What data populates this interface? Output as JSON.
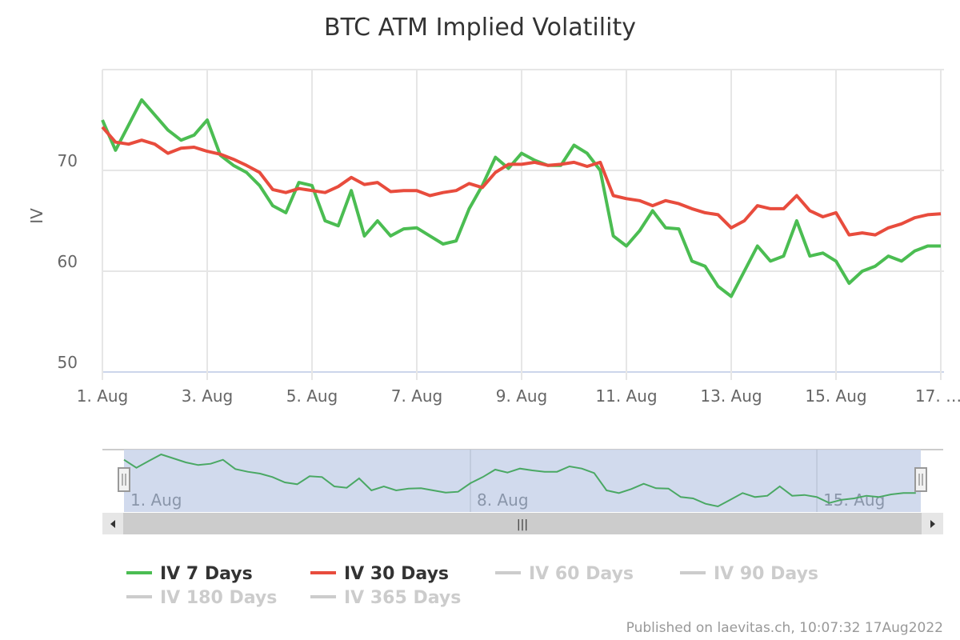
{
  "chart_data": {
    "type": "line",
    "title": "BTC ATM Implied Volatility",
    "ylabel": "IV",
    "xlabel": "",
    "ylim": [
      50,
      80
    ],
    "yticks": [
      "50",
      "60",
      "70"
    ],
    "xticks": [
      "1. Aug",
      "3. Aug",
      "5. Aug",
      "7. Aug",
      "9. Aug",
      "11. Aug",
      "13. Aug",
      "15. Aug",
      "17. …"
    ],
    "grid": true,
    "legend_position": "bottom",
    "x_start": "2022-08-01 00:00",
    "interval_hours": 6,
    "series": [
      {
        "name": "IV 7 Days",
        "color": "#4bbd52",
        "visible": true,
        "values": [
          75,
          72,
          74.5,
          77,
          75.5,
          74,
          73,
          73.5,
          75,
          71.5,
          70.5,
          69.8,
          68.5,
          66.5,
          65.8,
          68.8,
          68.5,
          65,
          64.5,
          68,
          63.5,
          65,
          63.5,
          64.2,
          64.3,
          63.5,
          62.7,
          63,
          66.2,
          68.5,
          71.3,
          70.2,
          71.7,
          71,
          70.5,
          70.5,
          72.5,
          71.7,
          70,
          63.5,
          62.5,
          64,
          66,
          64.3,
          64.2,
          61,
          60.5,
          58.5,
          57.5,
          60,
          62.5,
          61,
          61.5,
          65,
          61.5,
          61.8,
          61,
          58.8,
          60,
          60.5,
          61.5,
          61,
          62,
          62.5,
          62.5
        ]
      },
      {
        "name": "IV 30 Days",
        "color": "#e84c3d",
        "visible": true,
        "values": [
          74.3,
          72.8,
          72.6,
          73,
          72.6,
          71.7,
          72.2,
          72.3,
          71.9,
          71.6,
          71.1,
          70.5,
          69.8,
          68.1,
          67.8,
          68.2,
          68,
          67.8,
          68.4,
          69.3,
          68.6,
          68.8,
          67.9,
          68,
          68,
          67.5,
          67.8,
          68,
          68.7,
          68.3,
          69.8,
          70.6,
          70.6,
          70.8,
          70.5,
          70.6,
          70.8,
          70.4,
          70.8,
          67.5,
          67.2,
          67,
          66.5,
          67,
          66.7,
          66.2,
          65.8,
          65.6,
          64.3,
          65,
          66.5,
          66.2,
          66.2,
          67.5,
          66,
          65.4,
          65.8,
          63.6,
          63.8,
          63.6,
          64.3,
          64.7,
          65.3,
          65.6,
          65.7
        ]
      },
      {
        "name": "IV 60 Days",
        "color": "#cccccc",
        "visible": false
      },
      {
        "name": "IV 90 Days",
        "color": "#cccccc",
        "visible": false
      },
      {
        "name": "IV 180 Days",
        "color": "#cccccc",
        "visible": false
      },
      {
        "name": "IV 365 Days",
        "color": "#cccccc",
        "visible": false
      }
    ]
  },
  "navigator": {
    "labels": [
      "1. Aug",
      "8. Aug",
      "15. Aug"
    ],
    "handle_glyph": "|||"
  },
  "credit": "Published on laevitas.ch, 10:07:32 17Aug2022",
  "colors": {
    "legend_active_text": "#333333",
    "legend_hidden": "#cccccc",
    "navigator_mask": "#ccd6eb"
  }
}
